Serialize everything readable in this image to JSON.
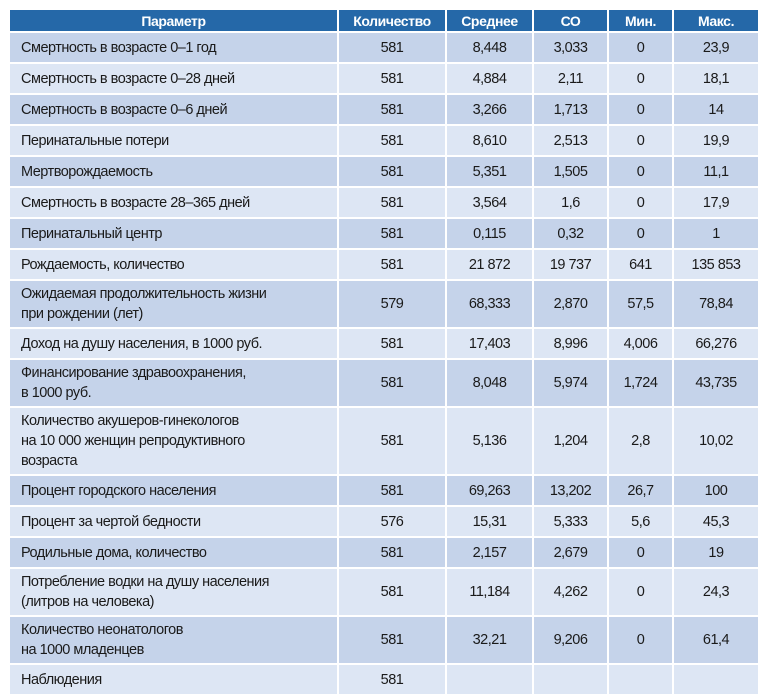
{
  "headers": [
    "Параметр",
    "Количество",
    "Среднее",
    "СО",
    "Мин.",
    "Макс."
  ],
  "rows": [
    {
      "param": "Смертность в возрасте 0–1 год",
      "count": "581",
      "mean": "8,448",
      "sd": "3,033",
      "min": "0",
      "max": "23,9"
    },
    {
      "param": "Смертность в возрасте 0–28 дней",
      "count": "581",
      "mean": "4,884",
      "sd": "2,11",
      "min": "0",
      "max": "18,1"
    },
    {
      "param": "Смертность в возрасте 0–6 дней",
      "count": "581",
      "mean": "3,266",
      "sd": "1,713",
      "min": "0",
      "max": "14"
    },
    {
      "param": "Перинатальные потери",
      "count": "581",
      "mean": "8,610",
      "sd": "2,513",
      "min": "0",
      "max": "19,9"
    },
    {
      "param": "Мертворождаемость",
      "count": "581",
      "mean": "5,351",
      "sd": "1,505",
      "min": "0",
      "max": "11,1"
    },
    {
      "param": "Смертность в возрасте 28–365 дней",
      "count": "581",
      "mean": "3,564",
      "sd": "1,6",
      "min": "0",
      "max": "17,9"
    },
    {
      "param": "Перинатальный центр",
      "count": "581",
      "mean": "0,115",
      "sd": "0,32",
      "min": "0",
      "max": "1"
    },
    {
      "param": "Рождаемость, количество",
      "count": "581",
      "mean": "21 872",
      "sd": "19 737",
      "min": "641",
      "max": "135 853"
    },
    {
      "param": "Ожидаемая продолжительность жизни при рождении (лет)",
      "count": "579",
      "mean": "68,333",
      "sd": "2,870",
      "min": "57,5",
      "max": "78,84"
    },
    {
      "param": "Доход на душу населения, в 1000 руб.",
      "count": "581",
      "mean": "17,403",
      "sd": "8,996",
      "min": "4,006",
      "max": "66,276"
    },
    {
      "param": "Финансирование здравоохранения, в 1000 руб.",
      "count": "581",
      "mean": "8,048",
      "sd": "5,974",
      "min": "1,724",
      "max": "43,735"
    },
    {
      "param": "Количество акушеров-гинекологов на 10 000 женщин репродуктивного возраста",
      "count": "581",
      "mean": "5,136",
      "sd": "1,204",
      "min": "2,8",
      "max": "10,02"
    },
    {
      "param": "Процент городского населения",
      "count": "581",
      "mean": "69,263",
      "sd": "13,202",
      "min": "26,7",
      "max": "100"
    },
    {
      "param": "Процент за чертой бедности",
      "count": "576",
      "mean": "15,31",
      "sd": "5,333",
      "min": "5,6",
      "max": "45,3"
    },
    {
      "param": "Родильные дома, количество",
      "count": "581",
      "mean": "2,157",
      "sd": "2,679",
      "min": "0",
      "max": "19"
    },
    {
      "param": "Потребление водки на душу населения (литров на человека)",
      "count": "581",
      "mean": "11,184",
      "sd": "4,262",
      "min": "0",
      "max": "24,3"
    },
    {
      "param": "Количество неонатологов на 1000 младенцев",
      "count": "581",
      "mean": "32,21",
      "sd": "9,206",
      "min": "0",
      "max": "61,4"
    },
    {
      "param": "Наблюдения",
      "count": "581",
      "mean": "",
      "sd": "",
      "min": "",
      "max": ""
    }
  ]
}
